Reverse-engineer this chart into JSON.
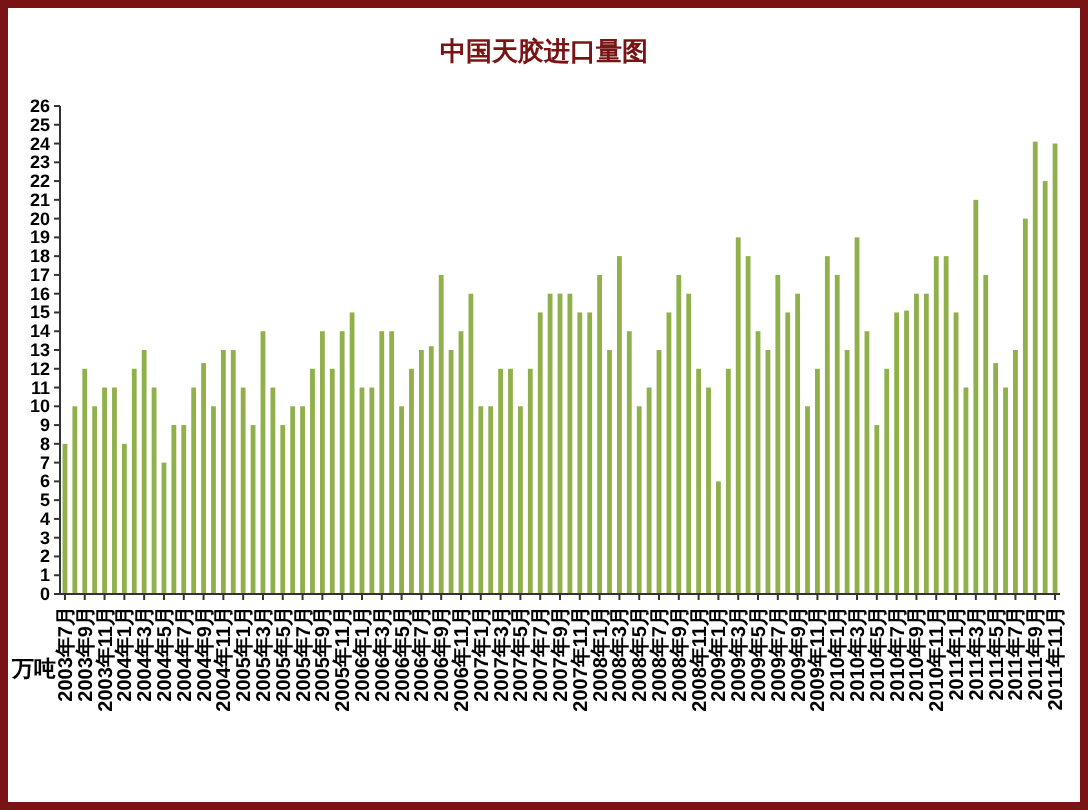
{
  "chart_data": {
    "type": "bar",
    "title": "中国天胶进口量图",
    "ylabel": "万吨",
    "categories": [
      "2003年7月",
      null,
      "2003年9月",
      null,
      "2003年11月",
      null,
      "2004年1月",
      null,
      "2004年3月",
      null,
      "2004年5月",
      null,
      "2004年7月",
      null,
      "2004年9月",
      null,
      "2004年11月",
      null,
      "2005年1月",
      null,
      "2005年3月",
      null,
      "2005年5月",
      null,
      "2005年7月",
      null,
      "2005年9月",
      null,
      "2005年11月",
      null,
      "2006年1月",
      null,
      "2006年3月",
      null,
      "2006年5月",
      null,
      "2006年7月",
      null,
      "2006年9月",
      null,
      "2006年11月",
      null,
      "2007年1月",
      null,
      "2007年3月",
      null,
      "2007年5月",
      null,
      "2007年7月",
      null,
      "2007年9月",
      null,
      "2007年11月",
      null,
      "2008年1月",
      null,
      "2008年3月",
      null,
      "2008年5月",
      null,
      "2008年7月",
      null,
      "2008年9月",
      null,
      "2008年11月",
      null,
      "2009年1月",
      null,
      "2009年3月",
      null,
      "2009年5月",
      null,
      "2009年7月",
      null,
      "2009年9月",
      null,
      "2009年11月",
      null,
      "2010年1月",
      null,
      "2010年3月",
      null,
      "2010年5月",
      null,
      "2010年7月",
      null,
      "2010年9月",
      null,
      "2010年11月",
      null,
      "2011年1月",
      null,
      "2011年3月",
      null,
      "2011年5月",
      null,
      "2011年7月",
      null,
      "2011年9月",
      null,
      "2011年11月"
    ],
    "values": [
      8,
      10,
      12,
      10,
      11,
      11,
      8,
      12,
      13,
      11,
      7,
      9,
      9,
      11,
      12.3,
      10,
      13,
      13,
      11,
      9,
      14,
      11,
      9,
      10,
      10,
      12,
      14,
      12,
      14,
      15,
      11,
      11,
      14,
      14,
      10,
      12,
      13,
      13.2,
      17,
      13,
      14,
      16,
      10,
      10,
      12,
      12,
      10,
      12,
      15,
      16,
      16,
      16,
      15,
      15,
      17,
      13,
      18,
      14,
      10,
      11,
      13,
      15,
      17,
      16,
      12,
      11,
      6,
      12,
      19,
      18,
      14,
      13,
      17,
      15,
      16,
      10,
      12,
      18,
      17,
      13,
      19,
      14,
      9,
      12,
      15,
      15.1,
      16,
      16,
      18,
      18,
      15,
      11,
      21,
      17,
      12.3,
      11,
      13,
      20,
      24.1,
      22,
      24
    ],
    "color": "#8fb04a",
    "ylim": [
      0,
      26
    ],
    "yticks": [
      0,
      1,
      2,
      3,
      4,
      5,
      6,
      7,
      8,
      9,
      10,
      11,
      12,
      13,
      14,
      15,
      16,
      17,
      18,
      19,
      20,
      21,
      22,
      23,
      24,
      25,
      26
    ],
    "grid": false
  }
}
